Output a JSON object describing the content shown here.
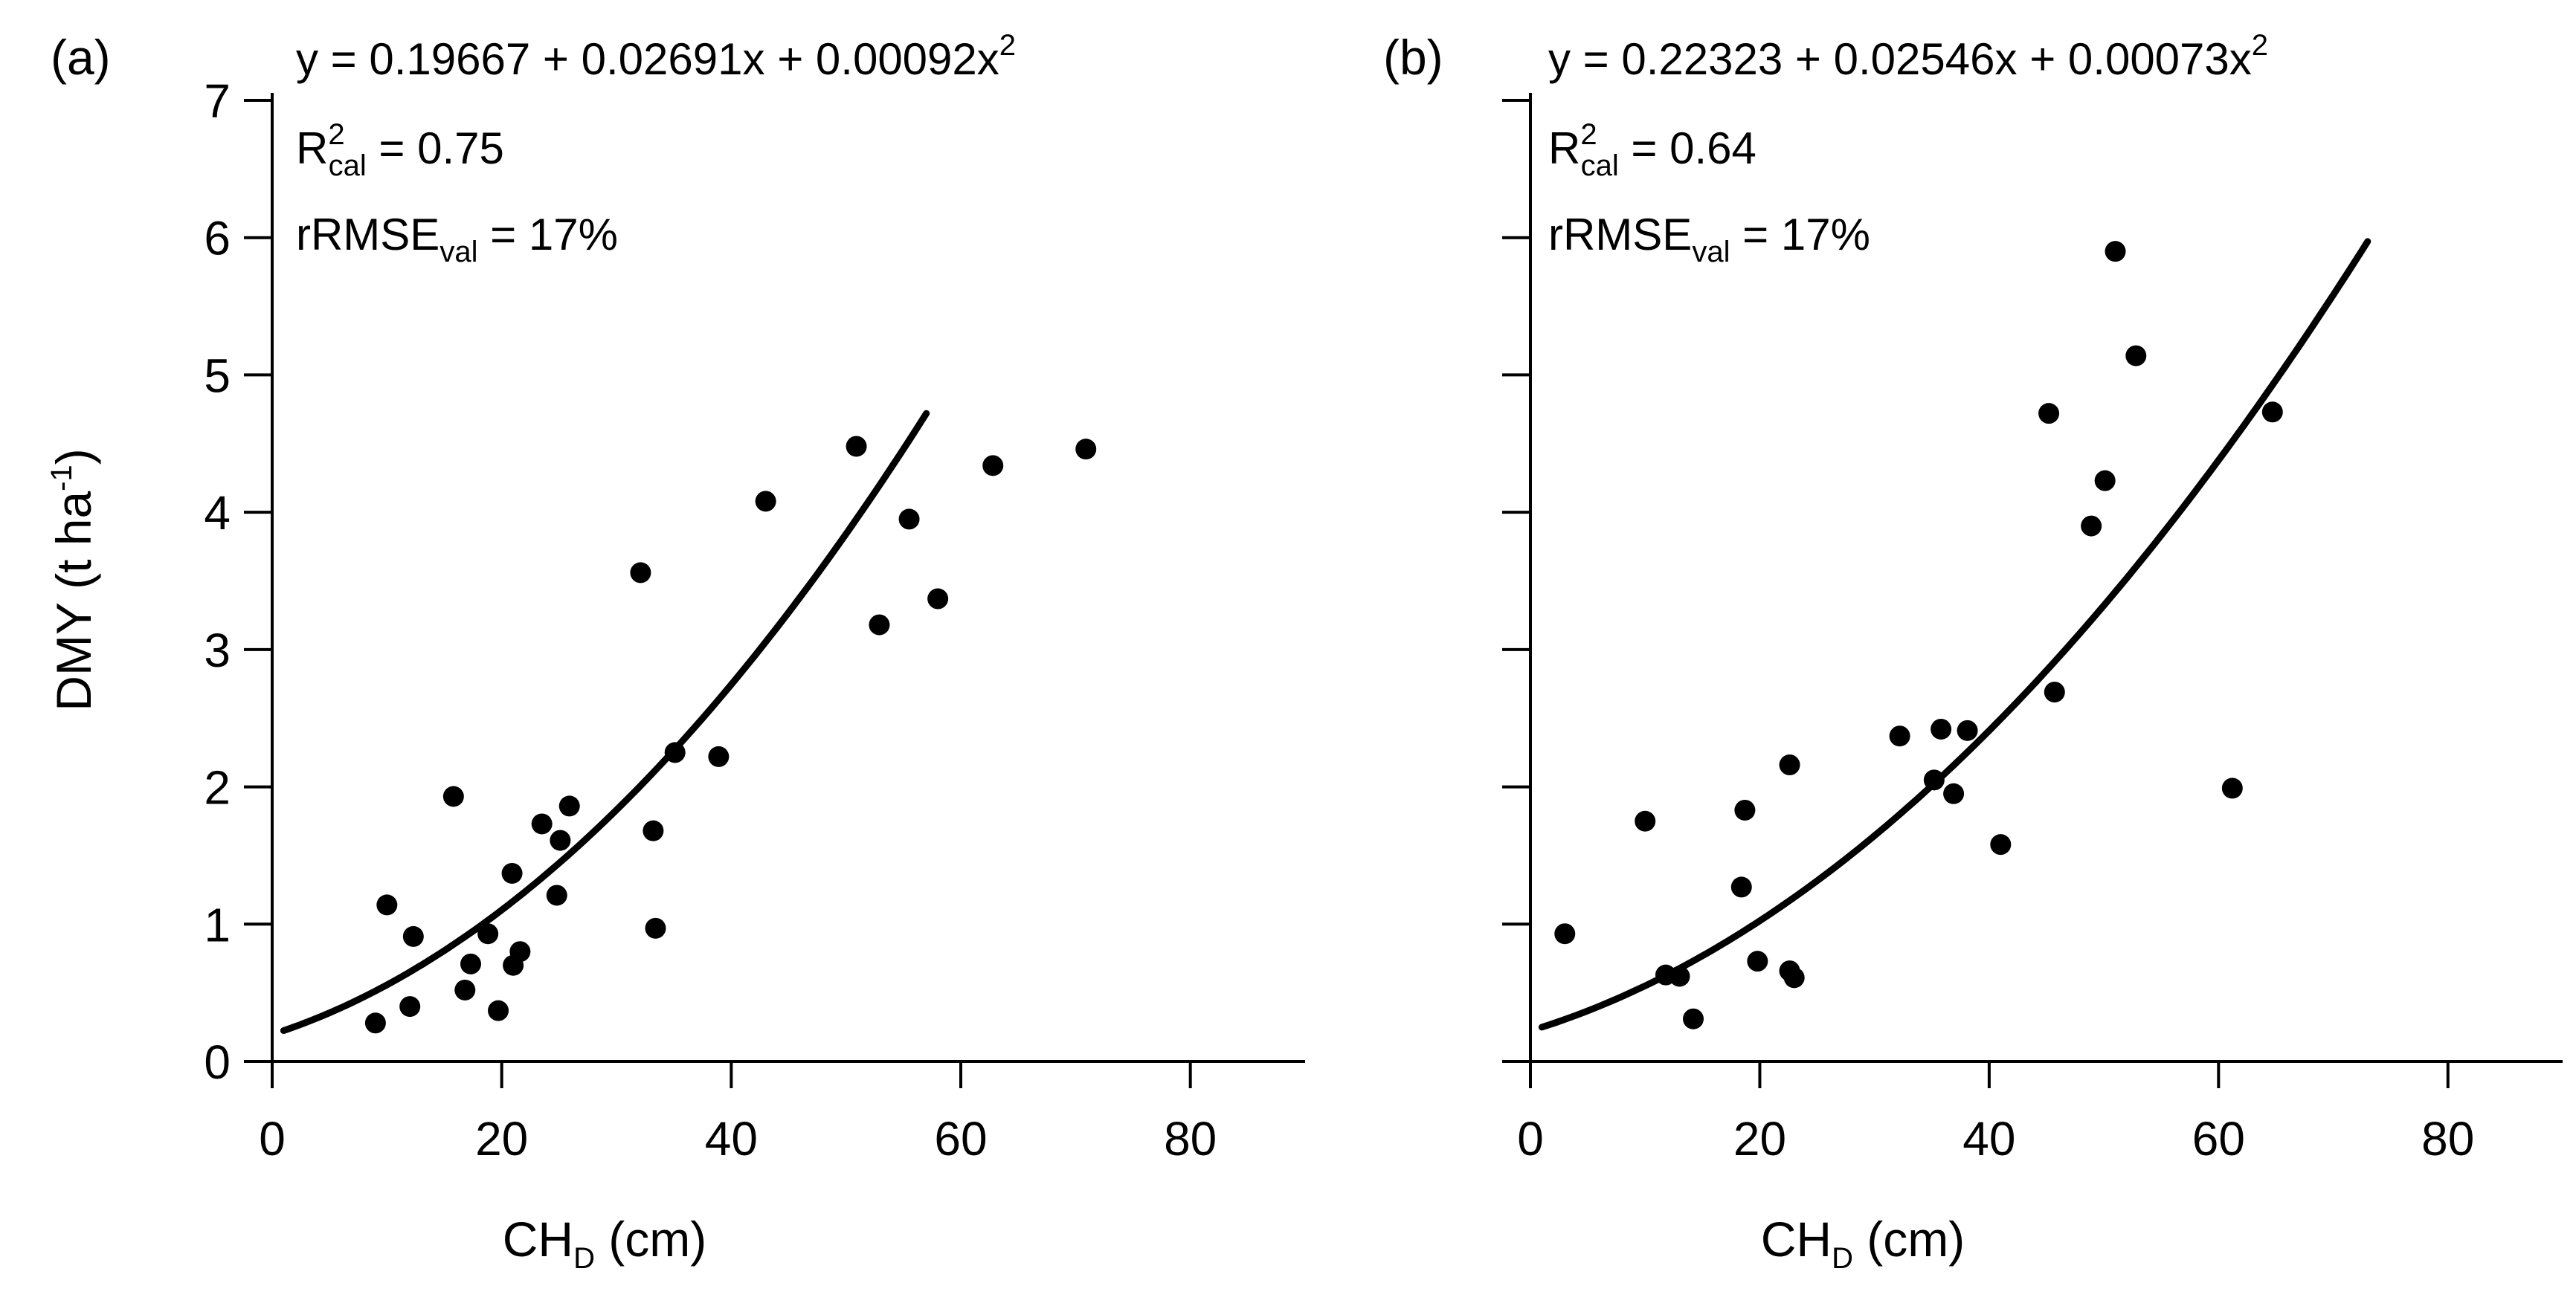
{
  "chart_data": [
    {
      "type": "scatter",
      "panel_label": "(a)",
      "xlabel": {
        "main": "CH",
        "sub": "D",
        "unit": " (cm)"
      },
      "ylabel": {
        "main": "DMY (t ha",
        "sup": "-1",
        "close": ")"
      },
      "xlim": [
        0,
        90
      ],
      "ylim": [
        0,
        7
      ],
      "xticks": [
        0,
        20,
        40,
        60,
        80
      ],
      "yticks": [
        0,
        1,
        2,
        3,
        4,
        5,
        6,
        7
      ],
      "annotations": {
        "equation": {
          "text": "y = 0.19667 + 0.02691x + 0.00092x",
          "sup": "2"
        },
        "r2": {
          "main": "R",
          "sup": "2",
          "sub": "cal",
          "rest": " = 0.75"
        },
        "rrmse": {
          "main": "rRMSE",
          "sub": "val",
          "rest": " = 17%"
        }
      },
      "fit": {
        "intercept": 0.19667,
        "linear": 0.02691,
        "quadratic": 0.00092,
        "x_range": [
          1,
          57
        ]
      },
      "points": [
        [
          9,
          0.28
        ],
        [
          10,
          1.14
        ],
        [
          12,
          0.4
        ],
        [
          12.3,
          0.91
        ],
        [
          15.8,
          1.93
        ],
        [
          16.8,
          0.52
        ],
        [
          17.3,
          0.71
        ],
        [
          18.8,
          0.93
        ],
        [
          19.7,
          0.37
        ],
        [
          20.9,
          1.37
        ],
        [
          21,
          0.7
        ],
        [
          21.6,
          0.8
        ],
        [
          23.5,
          1.73
        ],
        [
          24.8,
          1.21
        ],
        [
          25.1,
          1.61
        ],
        [
          25.9,
          1.86
        ],
        [
          32.1,
          3.56
        ],
        [
          33.2,
          1.68
        ],
        [
          33.4,
          0.97
        ],
        [
          35.1,
          2.25
        ],
        [
          38.9,
          2.22
        ],
        [
          43,
          4.08
        ],
        [
          50.9,
          4.48
        ],
        [
          52.9,
          3.18
        ],
        [
          55.5,
          3.95
        ],
        [
          58,
          3.37
        ],
        [
          62.8,
          4.34
        ],
        [
          70.9,
          4.46
        ]
      ]
    },
    {
      "type": "scatter",
      "panel_label": "(b)",
      "xlabel": {
        "main": "CH",
        "sub": "D",
        "unit": " (cm)"
      },
      "xlim": [
        0,
        90
      ],
      "ylim": [
        0,
        7
      ],
      "xticks": [
        0,
        20,
        40,
        60,
        80
      ],
      "yticks": [
        0,
        1,
        2,
        3,
        4,
        5,
        6,
        7
      ],
      "annotations": {
        "equation": {
          "text": "y = 0.22323 + 0.02546x + 0.00073x",
          "sup": "2"
        },
        "r2": {
          "main": "R",
          "sup": "2",
          "sub": "cal",
          "rest": " = 0.64"
        },
        "rrmse": {
          "main": "rRMSE",
          "sub": "val",
          "rest": " = 17%"
        }
      },
      "fit": {
        "intercept": 0.22323,
        "linear": 0.02546,
        "quadratic": 0.00073,
        "x_range": [
          1,
          73
        ]
      },
      "points": [
        [
          3,
          0.93
        ],
        [
          10,
          1.75
        ],
        [
          11.8,
          0.63
        ],
        [
          13,
          0.62
        ],
        [
          14.2,
          0.31
        ],
        [
          18.4,
          1.27
        ],
        [
          18.7,
          1.83
        ],
        [
          19.8,
          0.73
        ],
        [
          22.6,
          2.16
        ],
        [
          22.6,
          0.66
        ],
        [
          23,
          0.61
        ],
        [
          32.2,
          2.37
        ],
        [
          35.2,
          2.05
        ],
        [
          35.8,
          2.42
        ],
        [
          36.9,
          1.95
        ],
        [
          38.1,
          2.41
        ],
        [
          41,
          1.58
        ],
        [
          45.2,
          4.72
        ],
        [
          45.7,
          2.69
        ],
        [
          48.9,
          3.9
        ],
        [
          50.1,
          4.23
        ],
        [
          51,
          5.9
        ],
        [
          52.8,
          5.14
        ],
        [
          61.2,
          1.99
        ],
        [
          64.7,
          4.73
        ]
      ]
    }
  ]
}
